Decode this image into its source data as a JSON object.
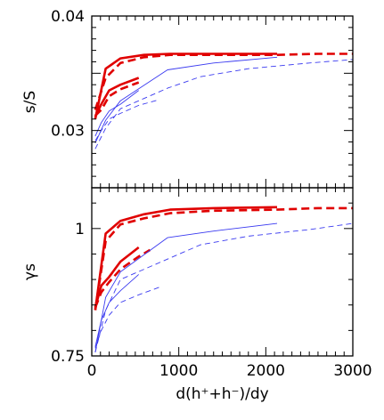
{
  "chart_data": [
    {
      "panel": "top",
      "type": "line",
      "ylabel": "s/S",
      "ylim": [
        0.025,
        0.04
      ],
      "xlim": [
        0,
        3000
      ],
      "ytick_labels": [
        {
          "value": 0.04,
          "label": "0.04"
        },
        {
          "value": 0.03,
          "label": "0.03"
        }
      ],
      "grid": false,
      "series": [
        {
          "color": "#e00000",
          "style": "solid",
          "weight": "thick",
          "x": [
            40,
            160,
            330,
            600,
            900,
            1400,
            2130
          ],
          "y": [
            0.031,
            0.0354,
            0.0363,
            0.0366,
            0.0367,
            0.0367,
            0.0367
          ]
        },
        {
          "color": "#e00000",
          "style": "dashed",
          "weight": "thick",
          "x": [
            40,
            160,
            330,
            600,
            900,
            1400,
            2130,
            2600,
            3000
          ],
          "y": [
            0.0318,
            0.0346,
            0.0359,
            0.0364,
            0.0366,
            0.0366,
            0.0366,
            0.0367,
            0.0367
          ]
        },
        {
          "color": "#e00000",
          "style": "solid",
          "weight": "thick",
          "x": [
            40,
            110,
            200,
            330,
            540
          ],
          "y": [
            0.0312,
            0.0323,
            0.0335,
            0.034,
            0.0346
          ]
        },
        {
          "color": "#e00000",
          "style": "dashed",
          "weight": "thick",
          "x": [
            40,
            110,
            200,
            330,
            540
          ],
          "y": [
            0.0313,
            0.0318,
            0.033,
            0.0336,
            0.0342
          ]
        },
        {
          "color": "#3a3af0",
          "style": "solid",
          "weight": "thin",
          "x": [
            40,
            160,
            330,
            870,
            1400,
            2130
          ],
          "y": [
            0.0289,
            0.0309,
            0.0326,
            0.0353,
            0.0359,
            0.0364
          ]
        },
        {
          "color": "#3a3af0",
          "style": "dashed",
          "weight": "thin",
          "x": [
            40,
            160,
            330,
            870,
            1250,
            1800,
            2500,
            3000
          ],
          "y": [
            0.0284,
            0.0302,
            0.0319,
            0.0337,
            0.0347,
            0.0354,
            0.0359,
            0.0362
          ]
        },
        {
          "color": "#3a3af0",
          "style": "solid",
          "weight": "thin",
          "x": [
            40,
            110,
            200,
            330,
            540
          ],
          "y": [
            0.0295,
            0.0307,
            0.0317,
            0.0323,
            0.0335
          ]
        },
        {
          "color": "#3a3af0",
          "style": "dashed",
          "weight": "thin",
          "x": [
            40,
            110,
            200,
            330,
            540,
            780
          ],
          "y": [
            0.0291,
            0.03,
            0.031,
            0.0315,
            0.0322,
            0.0327
          ]
        }
      ]
    },
    {
      "panel": "bottom",
      "type": "line",
      "ylabel": "γs",
      "ylim": [
        0.75,
        1.08
      ],
      "xlim": [
        0,
        3000
      ],
      "ytick_labels": [
        {
          "value": 1,
          "label": "1"
        },
        {
          "value": 0.75,
          "label": "0.75"
        }
      ],
      "xlabel": "d(h⁺+h⁻)/dy",
      "xtick_labels": [
        {
          "value": 0,
          "label": "0"
        },
        {
          "value": 1000,
          "label": "1000"
        },
        {
          "value": 2000,
          "label": "2000"
        },
        {
          "value": 3000,
          "label": "3000"
        }
      ],
      "grid": false,
      "series": [
        {
          "color": "#e00000",
          "style": "solid",
          "weight": "thick",
          "x": [
            40,
            160,
            330,
            600,
            900,
            1400,
            2130
          ],
          "y": [
            0.84,
            0.99,
            1.015,
            1.028,
            1.037,
            1.04,
            1.042
          ]
        },
        {
          "color": "#e00000",
          "style": "dashed",
          "weight": "thick",
          "x": [
            40,
            160,
            330,
            600,
            900,
            1400,
            2130,
            2600,
            3000
          ],
          "y": [
            0.84,
            0.975,
            1.008,
            1.02,
            1.03,
            1.035,
            1.037,
            1.04,
            1.04
          ]
        },
        {
          "color": "#e00000",
          "style": "solid",
          "weight": "thick",
          "x": [
            40,
            110,
            200,
            330,
            540
          ],
          "y": [
            0.845,
            0.888,
            0.905,
            0.935,
            0.963
          ]
        },
        {
          "color": "#e00000",
          "style": "dashed",
          "weight": "thick",
          "x": [
            40,
            110,
            200,
            330,
            540,
            670
          ],
          "y": [
            0.845,
            0.875,
            0.895,
            0.92,
            0.945,
            0.958
          ]
        },
        {
          "color": "#3a3af0",
          "style": "solid",
          "weight": "thin",
          "x": [
            40,
            160,
            330,
            870,
            1400,
            2130
          ],
          "y": [
            0.757,
            0.865,
            0.915,
            0.982,
            0.995,
            1.01
          ]
        },
        {
          "color": "#3a3af0",
          "style": "dashed",
          "weight": "thin",
          "x": [
            40,
            160,
            330,
            870,
            1250,
            1800,
            2500,
            3000
          ],
          "y": [
            0.757,
            0.84,
            0.9,
            0.94,
            0.968,
            0.985,
            0.998,
            1.01
          ]
        },
        {
          "color": "#3a3af0",
          "style": "solid",
          "weight": "thin",
          "x": [
            40,
            110,
            200,
            330,
            540
          ],
          "y": [
            0.768,
            0.82,
            0.855,
            0.878,
            0.91
          ]
        },
        {
          "color": "#3a3af0",
          "style": "dashed",
          "weight": "thin",
          "x": [
            40,
            110,
            200,
            330,
            540,
            780
          ],
          "y": [
            0.765,
            0.8,
            0.83,
            0.855,
            0.87,
            0.885
          ]
        }
      ]
    }
  ]
}
